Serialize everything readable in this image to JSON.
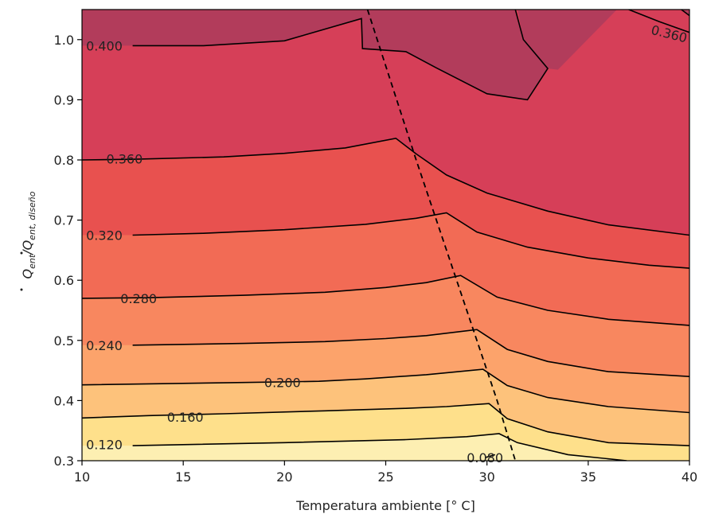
{
  "chart_data": {
    "type": "contour",
    "title": "",
    "xlabel": "Temperatura ambiente [° C]",
    "ylabel": {
      "main": "Q",
      "sub1": "ent",
      "mid": "/Q",
      "sub2": "ent, diseño"
    },
    "xlim": [
      10,
      40
    ],
    "ylim": [
      0.3,
      1.05
    ],
    "x_ticks": [
      10,
      15,
      20,
      25,
      30,
      35,
      40
    ],
    "y_ticks": [
      0.3,
      0.4,
      0.5,
      0.6,
      0.7,
      0.8,
      0.9,
      1.0
    ],
    "x_tick_labels": [
      "10",
      "15",
      "20",
      "25",
      "30",
      "35",
      "40"
    ],
    "y_tick_labels": [
      "0.3",
      "0.4",
      "0.5",
      "0.6",
      "0.7",
      "0.8",
      "0.9",
      "1.0"
    ],
    "grid": false,
    "colormap": "YlOrRd-like",
    "levels": [
      {
        "value": 0.08,
        "label": "0.080",
        "points": [
          [
            29.9,
            0.305
          ],
          [
            30.4,
            0.31
          ]
        ]
      },
      {
        "value": 0.12,
        "label": "0.120",
        "points": [
          [
            12.5,
            0.325
          ],
          [
            20,
            0.33
          ],
          [
            26,
            0.335
          ],
          [
            29,
            0.34
          ],
          [
            30.6,
            0.345
          ],
          [
            31.5,
            0.33
          ],
          [
            34,
            0.31
          ],
          [
            36.9,
            0.3
          ]
        ],
        "label_at": [
          11.1,
          0.327
        ]
      },
      {
        "value": 0.16,
        "label": "0.160",
        "points": [
          [
            10,
            0.371
          ],
          [
            13.3,
            0.375
          ],
          [
            17,
            0.378
          ],
          [
            22,
            0.383
          ],
          [
            26,
            0.387
          ],
          [
            28,
            0.39
          ],
          [
            30.1,
            0.395
          ],
          [
            31,
            0.37
          ],
          [
            33,
            0.348
          ],
          [
            36,
            0.33
          ],
          [
            40,
            0.325
          ]
        ],
        "label_at": [
          15.1,
          0.373
        ]
      },
      {
        "value": 0.2,
        "label": "0.200",
        "points": [
          [
            10,
            0.426
          ],
          [
            18,
            0.43
          ],
          [
            21.7,
            0.432
          ],
          [
            24,
            0.436
          ],
          [
            27,
            0.443
          ],
          [
            29.8,
            0.452
          ],
          [
            31,
            0.425
          ],
          [
            33,
            0.405
          ],
          [
            36,
            0.39
          ],
          [
            40,
            0.38
          ]
        ],
        "label_at": [
          19.9,
          0.43
        ]
      },
      {
        "value": 0.24,
        "label": "0.240",
        "points": [
          [
            12.5,
            0.492
          ],
          [
            18,
            0.495
          ],
          [
            22,
            0.498
          ],
          [
            25,
            0.503
          ],
          [
            27,
            0.508
          ],
          [
            29.5,
            0.518
          ],
          [
            31,
            0.485
          ],
          [
            33,
            0.465
          ],
          [
            36,
            0.448
          ],
          [
            40,
            0.44
          ]
        ],
        "label_at": [
          11.1,
          0.492
        ]
      },
      {
        "value": 0.28,
        "label": "0.280",
        "points": [
          [
            10,
            0.57
          ],
          [
            13.4,
            0.571
          ],
          [
            18,
            0.575
          ],
          [
            22,
            0.58
          ],
          [
            25,
            0.588
          ],
          [
            27,
            0.596
          ],
          [
            28.7,
            0.608
          ],
          [
            30.5,
            0.572
          ],
          [
            33,
            0.55
          ],
          [
            36,
            0.535
          ],
          [
            40,
            0.525
          ]
        ],
        "label_at": [
          12.8,
          0.57
        ]
      },
      {
        "value": 0.32,
        "label": "0.320",
        "points": [
          [
            12.5,
            0.675
          ],
          [
            16,
            0.678
          ],
          [
            20,
            0.684
          ],
          [
            24,
            0.693
          ],
          [
            26.5,
            0.703
          ],
          [
            28,
            0.712
          ],
          [
            29.5,
            0.68
          ],
          [
            32,
            0.655
          ],
          [
            35,
            0.637
          ],
          [
            38,
            0.625
          ],
          [
            40,
            0.62
          ]
        ],
        "label_at": [
          11.1,
          0.675
        ]
      },
      {
        "value": 0.36,
        "label": "0.360",
        "points": [
          [
            10,
            0.8
          ],
          [
            12.5,
            0.801
          ],
          [
            17,
            0.805
          ],
          [
            20,
            0.811
          ],
          [
            23,
            0.82
          ],
          [
            25.5,
            0.836
          ],
          [
            26.5,
            0.81
          ],
          [
            28,
            0.775
          ],
          [
            30,
            0.745
          ],
          [
            33,
            0.715
          ],
          [
            36,
            0.692
          ],
          [
            40,
            0.675
          ]
        ],
        "label_at": [
          12.1,
          0.802
        ]
      },
      {
        "value": 0.36,
        "label": "0.360",
        "points": [
          [
            37,
            1.05
          ],
          [
            38.5,
            1.03
          ],
          [
            40,
            1.012
          ]
        ],
        "label_at": [
          39,
          1.01
        ]
      },
      {
        "value": 0.4,
        "label": "0.400",
        "points": [
          [
            12.5,
            0.99
          ],
          [
            16,
            0.99
          ],
          [
            20,
            0.998
          ],
          [
            23.8,
            1.035
          ],
          [
            23.85,
            0.985
          ],
          [
            26,
            0.98
          ],
          [
            27.5,
            0.953
          ],
          [
            30,
            0.91
          ],
          [
            32,
            0.9
          ],
          [
            33,
            0.952
          ],
          [
            31.8,
            1.0
          ],
          [
            31.4,
            1.05
          ]
        ],
        "label_at": [
          11.1,
          0.99
        ]
      },
      {
        "value": 0.4,
        "label": "",
        "points": [
          [
            39.6,
            1.05
          ],
          [
            40,
            1.04
          ]
        ]
      }
    ],
    "boundary_dashed_line": {
      "points": [
        [
          24.1,
          1.05
        ],
        [
          26.5,
          0.8
        ],
        [
          30.5,
          0.4
        ],
        [
          31.4,
          0.3
        ]
      ]
    }
  }
}
